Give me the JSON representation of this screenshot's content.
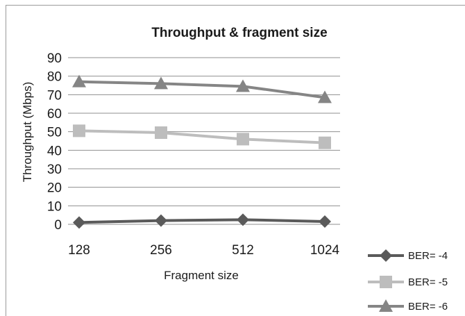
{
  "chart_data": {
    "type": "line",
    "title": "Throughput & fragment size",
    "xlabel": "Fragment size",
    "ylabel": "Throughput (Mbps)",
    "categories": [
      "128",
      "256",
      "512",
      "1024"
    ],
    "ylim": [
      0,
      90
    ],
    "yticks": [
      0,
      10,
      20,
      30,
      40,
      50,
      60,
      70,
      80,
      90
    ],
    "grid": true,
    "legend_position": "bottom-right",
    "series": [
      {
        "name": "BER= -4",
        "values": [
          1,
          2,
          2.5,
          1.5
        ],
        "color": "#5a5a5a",
        "marker": "diamond"
      },
      {
        "name": "BER= -5",
        "values": [
          50.5,
          49.5,
          46,
          44
        ],
        "color": "#bdbdbd",
        "marker": "square"
      },
      {
        "name": "BER= -6",
        "values": [
          77,
          76,
          74.5,
          68.5
        ],
        "color": "#858585",
        "marker": "triangle"
      }
    ]
  }
}
